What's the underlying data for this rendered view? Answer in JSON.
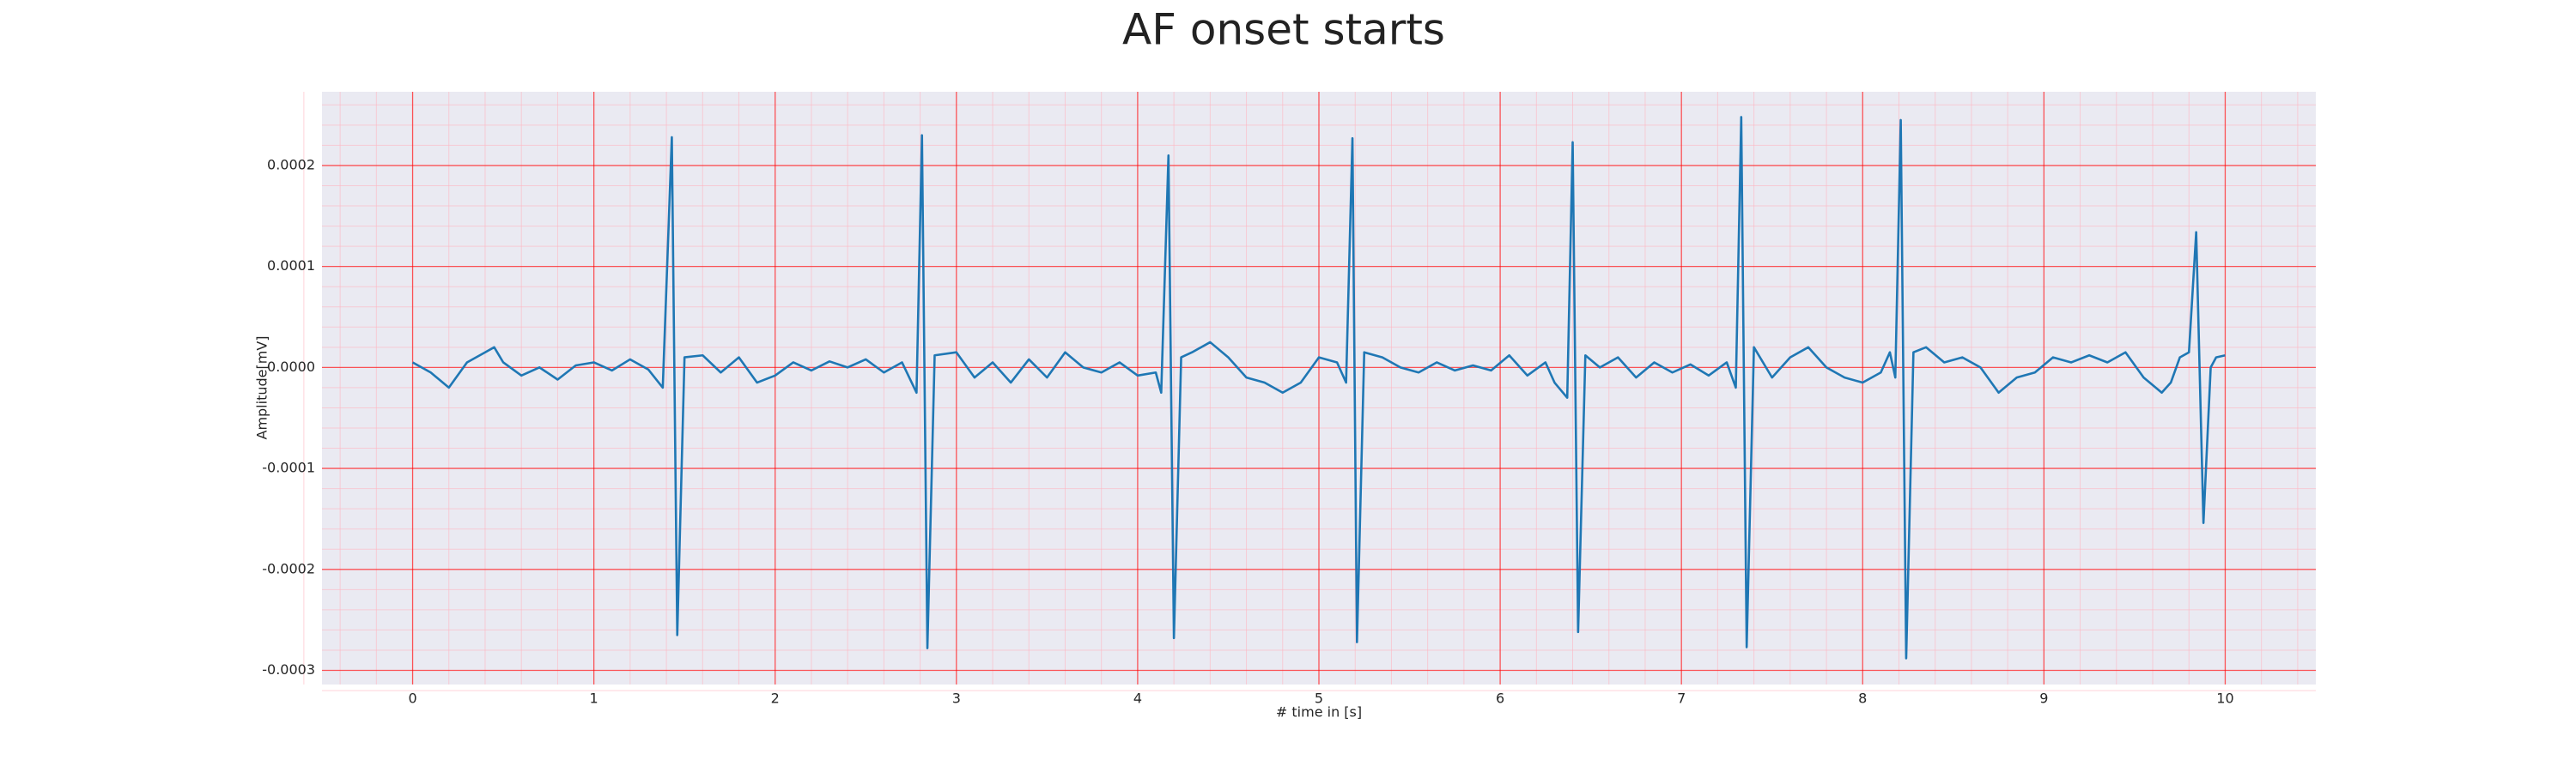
{
  "chart_data": {
    "type": "line",
    "title": "AF onset starts",
    "xlabel": "# time in [s]",
    "ylabel": "Amplitude[mV]",
    "xlim": [
      -0.5,
      10.5
    ],
    "ylim": [
      -0.000314,
      0.000273
    ],
    "xticks": [
      0,
      1,
      2,
      3,
      4,
      5,
      6,
      7,
      8,
      9,
      10
    ],
    "yticks": [
      {
        "value": -0.0003,
        "label": "-0.0003"
      },
      {
        "value": -0.0002,
        "label": "-0.0002"
      },
      {
        "value": -0.0001,
        "label": "-0.0001"
      },
      {
        "value": 0,
        "label": "0.0000"
      },
      {
        "value": 0.0001,
        "label": "0.0001"
      },
      {
        "value": 0.0002,
        "label": "0.0002"
      }
    ],
    "grid": true,
    "minor_grid": true,
    "x": [
      0,
      0.1,
      0.2,
      0.3,
      0.4,
      0.45,
      0.5,
      0.6,
      0.7,
      0.8,
      0.9,
      1.0,
      1.1,
      1.2,
      1.3,
      1.38,
      1.43,
      1.46,
      1.5,
      1.6,
      1.7,
      1.8,
      1.9,
      2.0,
      2.1,
      2.2,
      2.3,
      2.4,
      2.5,
      2.6,
      2.7,
      2.78,
      2.81,
      2.84,
      2.88,
      3.0,
      3.1,
      3.2,
      3.3,
      3.4,
      3.5,
      3.6,
      3.7,
      3.8,
      3.9,
      4.0,
      4.1,
      4.13,
      4.17,
      4.2,
      4.24,
      4.3,
      4.4,
      4.5,
      4.6,
      4.7,
      4.8,
      4.9,
      5.0,
      5.1,
      5.15,
      5.185,
      5.21,
      5.25,
      5.35,
      5.45,
      5.55,
      5.65,
      5.75,
      5.85,
      5.95,
      6.05,
      6.15,
      6.25,
      6.3,
      6.37,
      6.4,
      6.43,
      6.47,
      6.55,
      6.65,
      6.75,
      6.85,
      6.95,
      7.05,
      7.15,
      7.25,
      7.3,
      7.33,
      7.36,
      7.4,
      7.5,
      7.6,
      7.7,
      7.8,
      7.9,
      8.0,
      8.1,
      8.15,
      8.18,
      8.21,
      8.24,
      8.28,
      8.35,
      8.45,
      8.55,
      8.65,
      8.75,
      8.85,
      8.95,
      9.05,
      9.15,
      9.25,
      9.35,
      9.45,
      9.55,
      9.65,
      9.7,
      9.75,
      9.8,
      9.84,
      9.88,
      9.92,
      9.95,
      10.0
    ],
    "series": [
      {
        "color": "#1f77b4",
        "values": [
          5e-06,
          -5e-06,
          -2e-05,
          5e-06,
          1.5e-05,
          2e-05,
          5e-06,
          -8e-06,
          0,
          -1.2e-05,
          2e-06,
          5e-06,
          -3e-06,
          8e-06,
          -2e-06,
          -2e-05,
          0.000228,
          -0.000265,
          1e-05,
          1.2e-05,
          -5e-06,
          1e-05,
          -1.5e-05,
          -8e-06,
          5e-06,
          -3e-06,
          6e-06,
          0,
          8e-06,
          -5e-06,
          5e-06,
          -2.5e-05,
          0.00023,
          -0.000278,
          1.2e-05,
          1.5e-05,
          -1e-05,
          5e-06,
          -1.5e-05,
          8e-06,
          -1e-05,
          1.5e-05,
          0,
          -5e-06,
          5e-06,
          -8e-06,
          -5e-06,
          -2.5e-05,
          0.00021,
          -0.000268,
          1e-05,
          1.5e-05,
          2.5e-05,
          1e-05,
          -1e-05,
          -1.5e-05,
          -2.5e-05,
          -1.5e-05,
          1e-05,
          5e-06,
          -1.5e-05,
          0.000227,
          -0.000272,
          1.5e-05,
          1e-05,
          0,
          -5e-06,
          5e-06,
          -3e-06,
          2e-06,
          -3e-06,
          1.2e-05,
          -8e-06,
          5e-06,
          -1.5e-05,
          -3e-05,
          0.000223,
          -0.000262,
          1.2e-05,
          0,
          1e-05,
          -1e-05,
          5e-06,
          -5e-06,
          3e-06,
          -8e-06,
          5e-06,
          -2e-05,
          0.000248,
          -0.000277,
          2e-05,
          -1e-05,
          1e-05,
          2e-05,
          0,
          -1e-05,
          -1.5e-05,
          -5e-06,
          1.5e-05,
          -1e-05,
          0.000245,
          -0.000288,
          1.5e-05,
          2e-05,
          5e-06,
          1e-05,
          0,
          -2.5e-05,
          -1e-05,
          -5e-06,
          1e-05,
          5e-06,
          1.2e-05,
          5e-06,
          1.5e-05,
          -1e-05,
          -2.5e-05,
          -1.5e-05,
          1e-05,
          1.5e-05,
          0.000134,
          -0.000154,
          0,
          1e-05,
          1.2e-05
        ]
      }
    ]
  }
}
